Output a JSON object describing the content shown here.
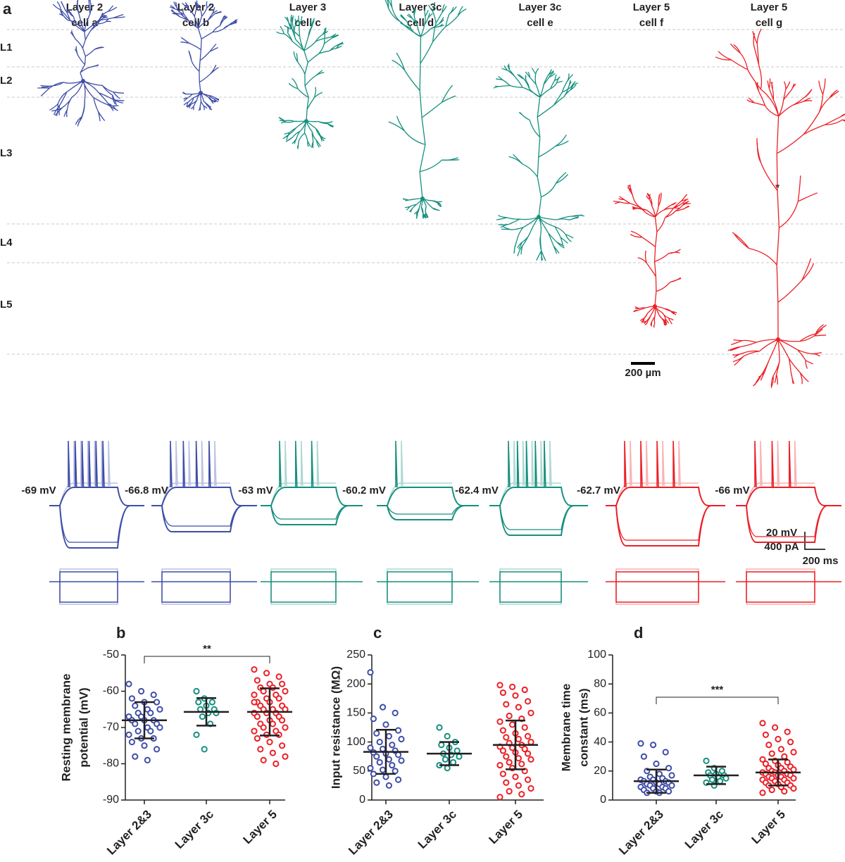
{
  "panel_a": {
    "letter": "a",
    "cells": [
      {
        "line1": "Layer 2",
        "line2": "cell a",
        "color": "#3f4ea8",
        "voltage": "-69 mV"
      },
      {
        "line1": "Layer 2",
        "line2": "cell b",
        "color": "#3f4ea8",
        "voltage": "-66.8 mV"
      },
      {
        "line1": "Layer 3",
        "line2": "cell c",
        "color": "#16907f",
        "voltage": "-63 mV"
      },
      {
        "line1": "Layer 3c",
        "line2": "cell d",
        "color": "#16907f",
        "voltage": "-60.2 mV"
      },
      {
        "line1": "Layer 3c",
        "line2": "cell e",
        "color": "#16907f",
        "voltage": "-62.4 mV"
      },
      {
        "line1": "Layer 5",
        "line2": "cell f",
        "color": "#ec2027",
        "voltage": "-62.7 mV"
      },
      {
        "line1": "Layer 5",
        "line2": "cell g",
        "color": "#ec2027",
        "voltage": "-66 mV"
      }
    ],
    "layers": [
      "L1",
      "L2",
      "L3",
      "L4",
      "L5"
    ],
    "scale": "200 µm",
    "marker": "*",
    "scale_voltage": "20 mV",
    "scale_current": "400 pA",
    "scale_time": "200 ms"
  },
  "chart_data": [
    {
      "type": "dotplot",
      "panel": "b",
      "ylabel": [
        "Resting membrane",
        "potential (mV)"
      ],
      "categories": [
        "Layer 2&3",
        "Layer 3c",
        "Layer 5"
      ],
      "colors": [
        "#3f4ea8",
        "#16907f",
        "#ec2027"
      ],
      "ylim": [
        -90,
        -50
      ],
      "yticks": [
        -90,
        -80,
        -70,
        -60,
        -50
      ],
      "significance": "**",
      "values": [
        [
          -58,
          -60,
          -61,
          -62,
          -63,
          -63,
          -64,
          -65,
          -65,
          -66,
          -66,
          -67,
          -67,
          -68,
          -68,
          -68,
          -69,
          -69,
          -70,
          -70,
          -71,
          -71,
          -72,
          -73,
          -73,
          -74,
          -75,
          -76,
          -78,
          -79
        ],
        [
          -60,
          -62,
          -63,
          -63,
          -64,
          -65,
          -65,
          -66,
          -66,
          -67,
          -69,
          -72,
          -76
        ],
        [
          -54,
          -55,
          -56,
          -57,
          -58,
          -58,
          -59,
          -59,
          -60,
          -60,
          -61,
          -61,
          -62,
          -62,
          -63,
          -63,
          -64,
          -64,
          -65,
          -65,
          -65,
          -66,
          -66,
          -66,
          -67,
          -67,
          -68,
          -68,
          -69,
          -69,
          -70,
          -70,
          -71,
          -71,
          -72,
          -72,
          -73,
          -74,
          -75,
          -76,
          -77,
          -78,
          -79,
          -80,
          -63
        ]
      ],
      "mean": [
        -68,
        -65.7,
        -65.7
      ],
      "sd": [
        5,
        3.8,
        6.5
      ]
    },
    {
      "type": "dotplot",
      "panel": "c",
      "ylabel": [
        "Input resistance (MΩ)"
      ],
      "categories": [
        "Layer 2&3",
        "Layer 3c",
        "Layer 5"
      ],
      "colors": [
        "#3f4ea8",
        "#16907f",
        "#ec2027"
      ],
      "ylim": [
        0,
        250
      ],
      "yticks": [
        0,
        50,
        100,
        150,
        200,
        250
      ],
      "values": [
        [
          220,
          160,
          150,
          140,
          130,
          120,
          115,
          110,
          105,
          100,
          95,
          90,
          88,
          85,
          82,
          80,
          78,
          75,
          70,
          68,
          65,
          60,
          55,
          52,
          50,
          45,
          40,
          35,
          30,
          25
        ],
        [
          125,
          110,
          100,
          95,
          90,
          85,
          80,
          78,
          75,
          70,
          65,
          60,
          55
        ],
        [
          198,
          195,
          190,
          185,
          180,
          170,
          165,
          160,
          150,
          145,
          140,
          135,
          130,
          125,
          120,
          115,
          110,
          108,
          105,
          100,
          98,
          95,
          92,
          90,
          88,
          85,
          82,
          80,
          75,
          72,
          70,
          65,
          62,
          60,
          55,
          50,
          45,
          40,
          35,
          30,
          25,
          20,
          15,
          10,
          5
        ]
      ],
      "mean": [
        83,
        80,
        95
      ],
      "sd": [
        38,
        20,
        42
      ]
    },
    {
      "type": "dotplot",
      "panel": "d",
      "ylabel": [
        "Membrane time",
        "constant (ms)"
      ],
      "categories": [
        "Layer 2&3",
        "Layer 3c",
        "Layer 5"
      ],
      "colors": [
        "#3f4ea8",
        "#16907f",
        "#ec2027"
      ],
      "ylim": [
        0,
        100
      ],
      "yticks": [
        0,
        20,
        40,
        60,
        80,
        100
      ],
      "significance": "***",
      "values": [
        [
          39,
          38,
          33,
          30,
          25,
          22,
          20,
          18,
          17,
          16,
          15,
          14,
          14,
          13,
          13,
          12,
          12,
          11,
          11,
          10,
          10,
          9,
          9,
          8,
          8,
          7,
          6,
          6,
          5,
          5
        ],
        [
          27,
          22,
          20,
          19,
          18,
          17,
          17,
          16,
          15,
          14,
          13,
          12,
          10
        ],
        [
          53,
          50,
          47,
          45,
          42,
          40,
          38,
          35,
          33,
          32,
          30,
          28,
          27,
          26,
          25,
          24,
          23,
          22,
          22,
          21,
          20,
          20,
          19,
          19,
          18,
          18,
          17,
          17,
          16,
          16,
          15,
          15,
          14,
          14,
          13,
          12,
          12,
          11,
          10,
          10,
          9,
          8,
          7,
          6,
          5
        ]
      ],
      "mean": [
        13,
        17,
        19
      ],
      "sd": [
        8,
        6,
        9
      ]
    }
  ]
}
